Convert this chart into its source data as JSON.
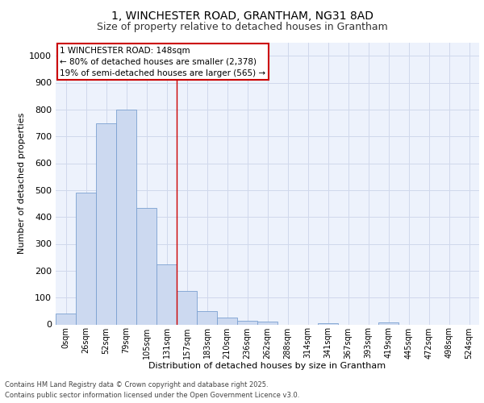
{
  "title_line1": "1, WINCHESTER ROAD, GRANTHAM, NG31 8AD",
  "title_line2": "Size of property relative to detached houses in Grantham",
  "xlabel": "Distribution of detached houses by size in Grantham",
  "ylabel": "Number of detached properties",
  "bar_labels": [
    "0sqm",
    "26sqm",
    "52sqm",
    "79sqm",
    "105sqm",
    "131sqm",
    "157sqm",
    "183sqm",
    "210sqm",
    "236sqm",
    "262sqm",
    "288sqm",
    "314sqm",
    "341sqm",
    "367sqm",
    "393sqm",
    "419sqm",
    "445sqm",
    "472sqm",
    "498sqm",
    "524sqm"
  ],
  "bar_values": [
    40,
    490,
    750,
    800,
    435,
    225,
    125,
    50,
    25,
    15,
    10,
    0,
    0,
    5,
    0,
    0,
    8,
    0,
    0,
    0,
    0
  ],
  "bar_color": "#ccd9f0",
  "bar_edge_color": "#7aa0d0",
  "vline_x": 5.5,
  "vline_color": "#cc0000",
  "ylim": [
    0,
    1050
  ],
  "yticks": [
    0,
    100,
    200,
    300,
    400,
    500,
    600,
    700,
    800,
    900,
    1000
  ],
  "annotation_text": "1 WINCHESTER ROAD: 148sqm\n← 80% of detached houses are smaller (2,378)\n19% of semi-detached houses are larger (565) →",
  "annotation_box_color": "#ffffff",
  "annotation_box_edge": "#cc0000",
  "footer_line1": "Contains HM Land Registry data © Crown copyright and database right 2025.",
  "footer_line2": "Contains public sector information licensed under the Open Government Licence v3.0.",
  "bg_color": "#edf2fc",
  "grid_color": "#d0d8ec",
  "title1_fontsize": 10,
  "title2_fontsize": 9,
  "ylabel_fontsize": 8,
  "xlabel_fontsize": 8,
  "ytick_fontsize": 8,
  "xtick_fontsize": 7,
  "annotation_fontsize": 7.5,
  "footer_fontsize": 6
}
